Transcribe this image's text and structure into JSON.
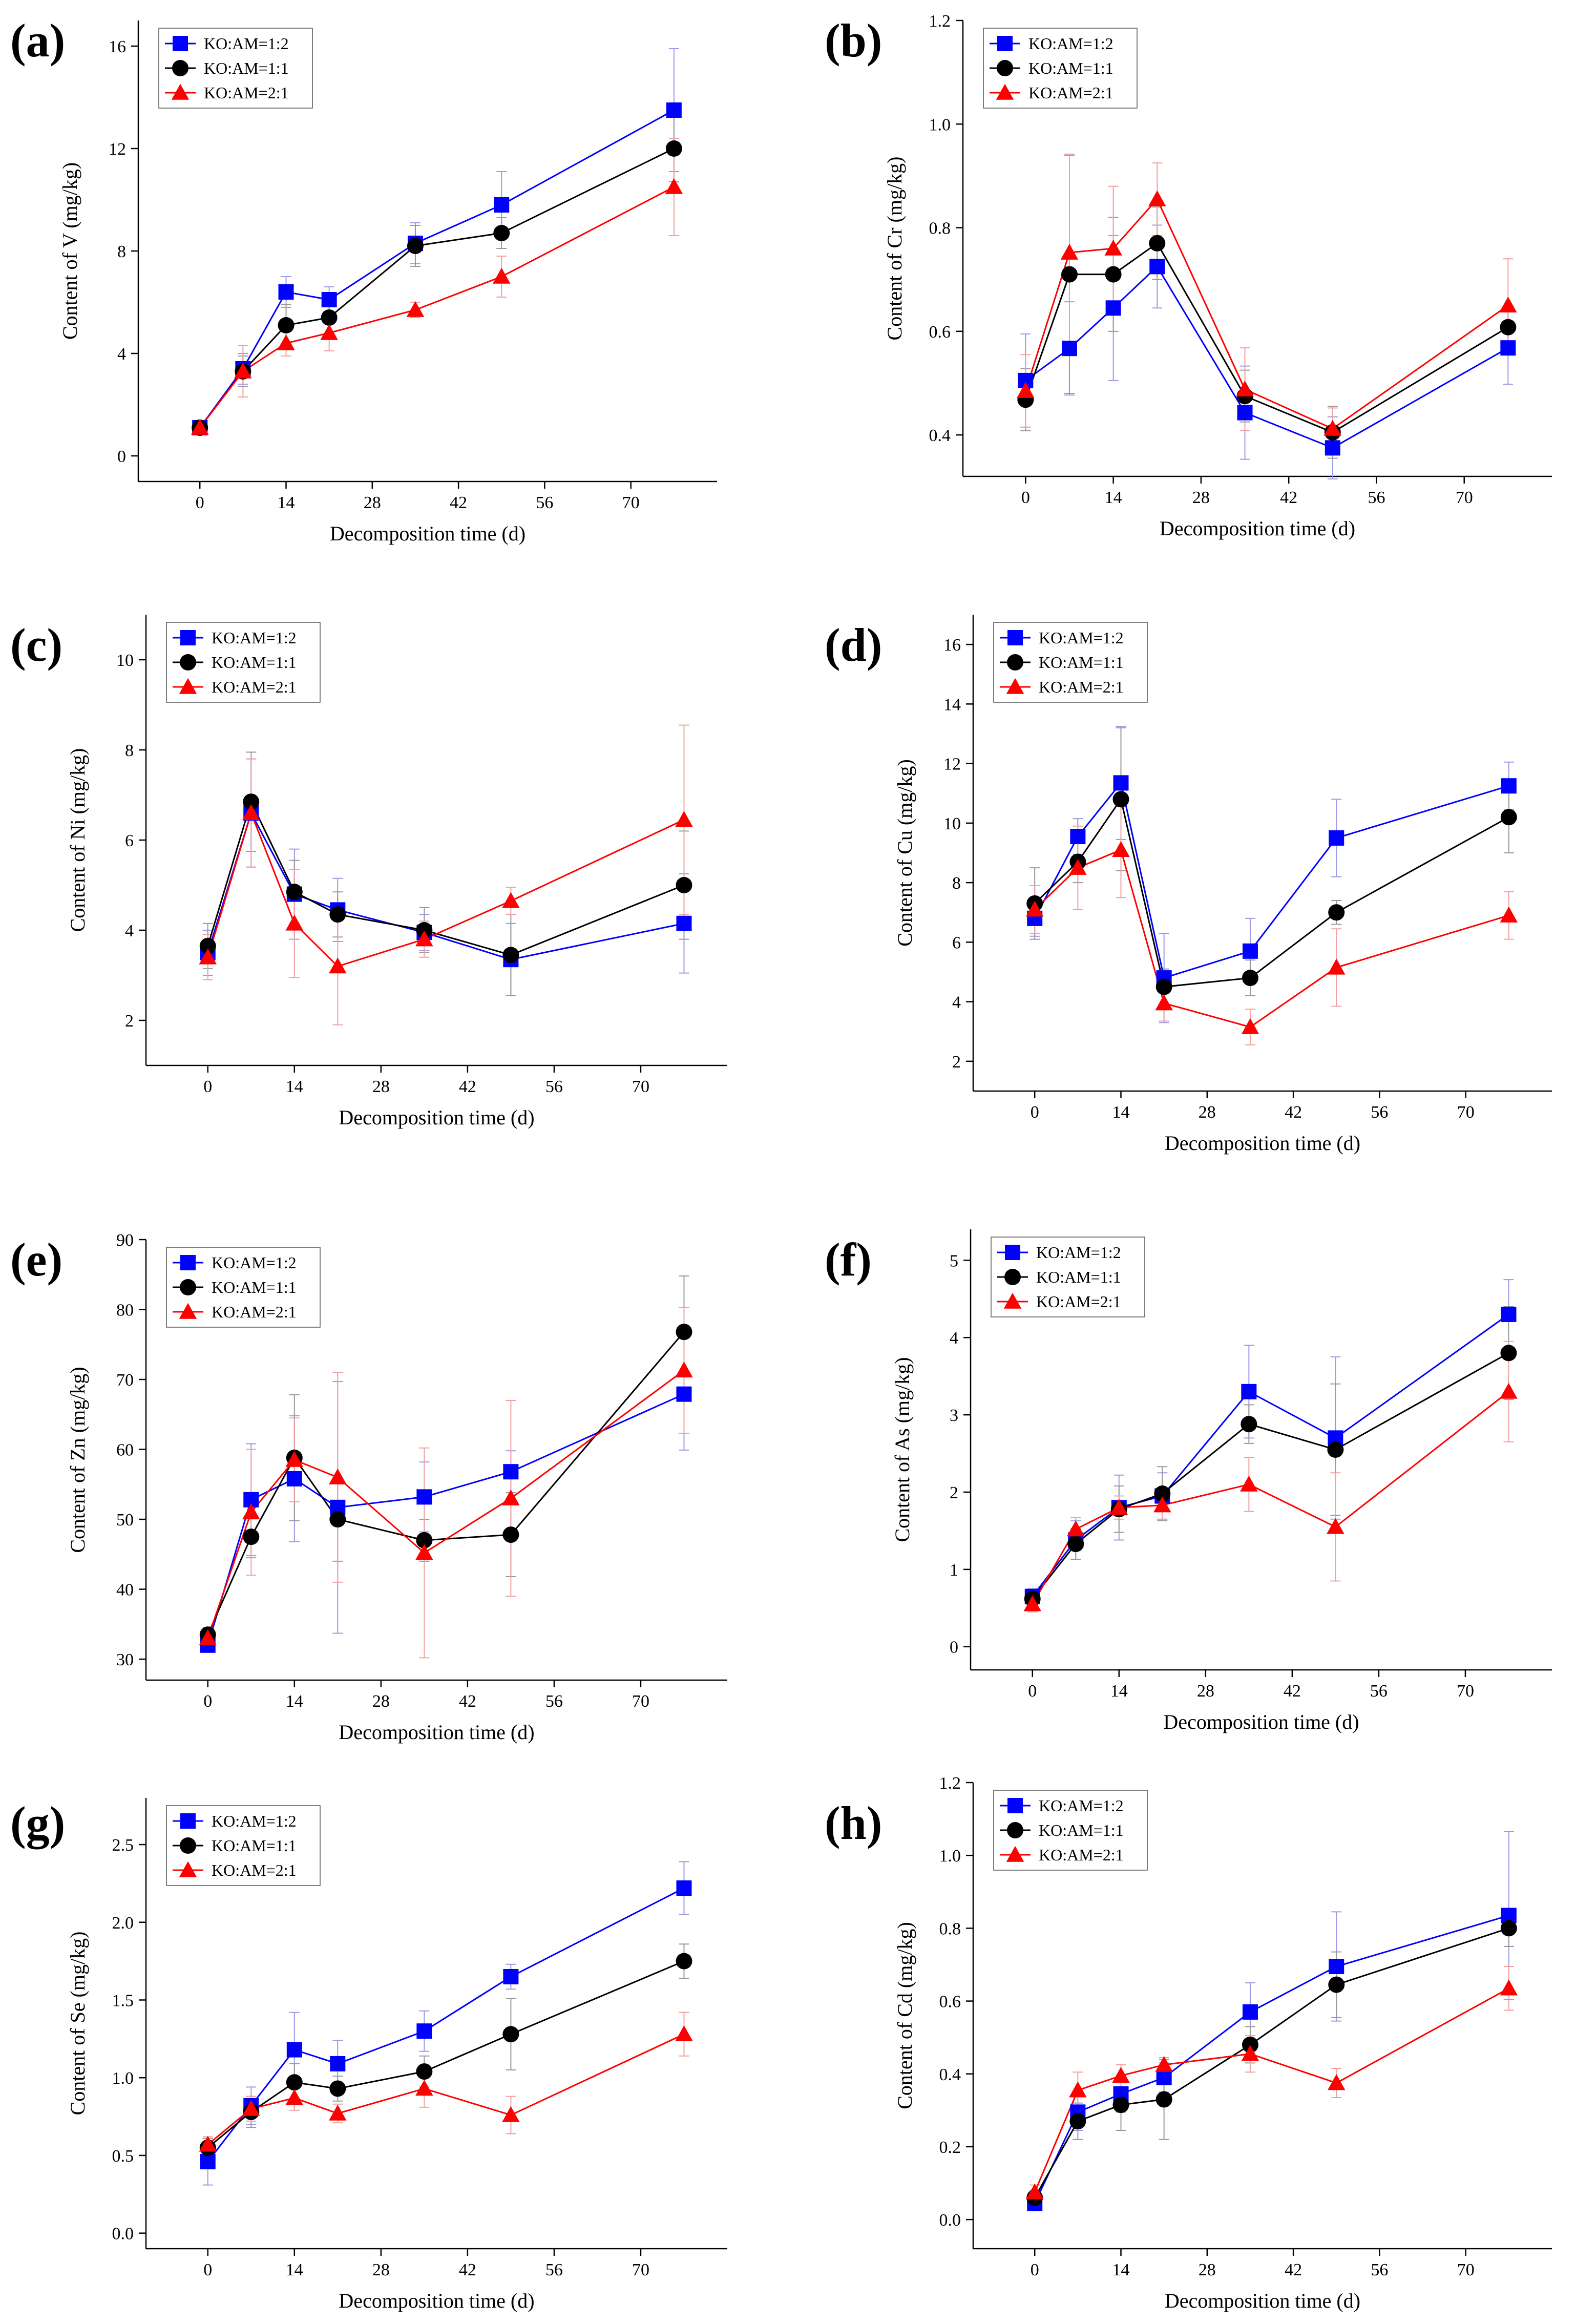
{
  "figure": {
    "panel_labels": [
      "(a)",
      "(b)",
      "(c)",
      "(d)",
      "(e)",
      "(f)",
      "(g)",
      "(h)"
    ]
  },
  "colors": {
    "series_1": "#0000ff",
    "series_2": "#000000",
    "series_3": "#ff0000",
    "series_1_error": "#9a9ae6",
    "series_2_error": "#999999",
    "series_3_error": "#f0a0a0"
  },
  "chart_data": [
    {
      "type": "line",
      "panel": "(a)",
      "title": "",
      "xlabel": "Decomposition time (d)",
      "ylabel": "Content of V (mg/kg)",
      "x": [
        0,
        7,
        14,
        21,
        35,
        49,
        77
      ],
      "xticks": [
        0,
        14,
        28,
        42,
        56,
        70
      ],
      "xlim": [
        -10,
        84
      ],
      "yticks": [
        0,
        4,
        8,
        12,
        16
      ],
      "ylim": [
        -1,
        17
      ],
      "legend_position": "top-left",
      "series": [
        {
          "name": "KO:AM=1:2",
          "marker": "square",
          "values": [
            1.1,
            3.4,
            6.4,
            6.1,
            8.3,
            9.8,
            13.5
          ],
          "errors": [
            0.2,
            0.6,
            0.6,
            0.5,
            0.8,
            1.3,
            2.4
          ]
        },
        {
          "name": "KO:AM=1:1",
          "marker": "circle",
          "values": [
            1.1,
            3.3,
            5.1,
            5.4,
            8.2,
            8.7,
            12.0
          ],
          "errors": [
            0.2,
            0.6,
            0.8,
            0.7,
            0.8,
            0.6,
            1.3
          ]
        },
        {
          "name": "KO:AM=2:1",
          "marker": "triangle",
          "values": [
            1.1,
            3.3,
            4.4,
            4.8,
            5.7,
            7.0,
            10.5
          ],
          "errors": [
            0.2,
            1.0,
            0.5,
            0.7,
            0.3,
            0.8,
            1.9
          ]
        }
      ]
    },
    {
      "type": "line",
      "panel": "(b)",
      "title": "",
      "xlabel": "Decomposition time (d)",
      "ylabel": "Content of Cr (mg/kg)",
      "x": [
        0,
        7,
        14,
        21,
        35,
        49,
        77
      ],
      "xticks": [
        0,
        14,
        28,
        42,
        56,
        70
      ],
      "xlim": [
        -10,
        84
      ],
      "yticks": [
        0.4,
        0.6,
        0.8,
        1.0,
        1.2
      ],
      "ylim": [
        0.32,
        1.2
      ],
      "legend_position": "top-left",
      "series": [
        {
          "name": "KO:AM=1:2",
          "marker": "square",
          "values": [
            0.505,
            0.567,
            0.645,
            0.725,
            0.443,
            0.375,
            0.568
          ],
          "errors": [
            0.09,
            0.09,
            0.14,
            0.08,
            0.09,
            0.06,
            0.07
          ]
        },
        {
          "name": "KO:AM=1:1",
          "marker": "circle",
          "values": [
            0.468,
            0.71,
            0.71,
            0.77,
            0.475,
            0.405,
            0.608
          ],
          "errors": [
            0.06,
            0.23,
            0.11,
            0.07,
            0.05,
            0.05,
            0.04
          ]
        },
        {
          "name": "KO:AM=2:1",
          "marker": "triangle",
          "values": [
            0.485,
            0.752,
            0.76,
            0.855,
            0.488,
            0.412,
            0.65
          ],
          "errors": [
            0.07,
            0.19,
            0.12,
            0.07,
            0.08,
            0.04,
            0.09
          ]
        }
      ]
    },
    {
      "type": "line",
      "panel": "(c)",
      "title": "",
      "xlabel": "Decomposition time (d)",
      "ylabel": "Content of Ni (mg/kg)",
      "x": [
        0,
        7,
        14,
        21,
        35,
        49,
        77
      ],
      "xticks": [
        0,
        14,
        28,
        42,
        56,
        70
      ],
      "xlim": [
        -10,
        84
      ],
      "yticks": [
        2,
        4,
        6,
        8,
        10
      ],
      "ylim": [
        1,
        11
      ],
      "legend_position": "top-left",
      "series": [
        {
          "name": "KO:AM=1:2",
          "marker": "square",
          "values": [
            3.5,
            6.6,
            4.8,
            4.45,
            3.95,
            3.35,
            4.15
          ],
          "errors": [
            0.5,
            1.2,
            1.0,
            0.7,
            0.4,
            0.8,
            1.1
          ]
        },
        {
          "name": "KO:AM=1:1",
          "marker": "circle",
          "values": [
            3.65,
            6.85,
            4.85,
            4.35,
            4.0,
            3.45,
            5.0
          ],
          "errors": [
            0.5,
            1.1,
            0.7,
            0.5,
            0.5,
            0.9,
            1.2
          ]
        },
        {
          "name": "KO:AM=2:1",
          "marker": "triangle",
          "values": [
            3.4,
            6.6,
            4.15,
            3.2,
            3.8,
            4.65,
            6.45
          ],
          "errors": [
            0.5,
            1.2,
            1.2,
            1.3,
            0.4,
            0.3,
            2.1
          ]
        }
      ]
    },
    {
      "type": "line",
      "panel": "(d)",
      "title": "",
      "xlabel": "Decomposition time (d)",
      "ylabel": "Content of Cu (mg/kg)",
      "x": [
        0,
        7,
        14,
        21,
        35,
        49,
        77
      ],
      "xticks": [
        0,
        14,
        28,
        42,
        56,
        70
      ],
      "xlim": [
        -10,
        84
      ],
      "yticks": [
        2,
        4,
        6,
        8,
        10,
        12,
        14,
        16
      ],
      "ylim": [
        1,
        17
      ],
      "legend_position": "top-left",
      "series": [
        {
          "name": "KO:AM=1:2",
          "marker": "square",
          "values": [
            6.8,
            9.55,
            11.35,
            4.8,
            5.7,
            9.5,
            11.25
          ],
          "errors": [
            0.6,
            0.6,
            1.9,
            1.5,
            1.1,
            1.3,
            0.8
          ]
        },
        {
          "name": "KO:AM=1:1",
          "marker": "circle",
          "values": [
            7.3,
            8.7,
            10.8,
            4.5,
            4.8,
            7.0,
            10.2
          ],
          "errors": [
            1.2,
            0.7,
            2.4,
            0.6,
            0.6,
            0.4,
            1.2
          ]
        },
        {
          "name": "KO:AM=2:1",
          "marker": "triangle",
          "values": [
            7.1,
            8.5,
            9.1,
            3.95,
            3.15,
            5.15,
            6.9
          ],
          "errors": [
            0.8,
            1.4,
            1.6,
            0.6,
            0.6,
            1.3,
            0.8
          ]
        }
      ]
    },
    {
      "type": "line",
      "panel": "(e)",
      "title": "",
      "xlabel": "Decomposition time (d)",
      "ylabel": "Content of Zn (mg/kg)",
      "x": [
        0,
        7,
        14,
        21,
        35,
        49,
        77
      ],
      "xticks": [
        0,
        14,
        28,
        42,
        56,
        70
      ],
      "xlim": [
        -10,
        84
      ],
      "yticks": [
        30,
        40,
        50,
        60,
        70,
        80,
        90
      ],
      "ylim": [
        27,
        90
      ],
      "legend_position": "top-left",
      "series": [
        {
          "name": "KO:AM=1:2",
          "marker": "square",
          "values": [
            32.0,
            52.8,
            55.8,
            51.7,
            53.2,
            56.8,
            67.9
          ],
          "errors": [
            1.0,
            8.0,
            9.0,
            18.0,
            5.0,
            3.0,
            8.0
          ]
        },
        {
          "name": "KO:AM=1:1",
          "marker": "circle",
          "values": [
            33.5,
            47.5,
            58.8,
            50.0,
            47.0,
            47.8,
            76.8
          ],
          "errors": [
            1.0,
            3.0,
            9.0,
            6.0,
            3.0,
            6.0,
            8.0
          ]
        },
        {
          "name": "KO:AM=2:1",
          "marker": "triangle",
          "values": [
            33.0,
            51.0,
            58.5,
            56.0,
            45.2,
            53.0,
            71.3
          ],
          "errors": [
            1.0,
            9.0,
            6.0,
            15.0,
            15.0,
            14.0,
            9.0
          ]
        }
      ]
    },
    {
      "type": "line",
      "panel": "(f)",
      "title": "",
      "xlabel": "Decomposition time (d)",
      "ylabel": "Content of As (mg/kg)",
      "x": [
        0,
        7,
        14,
        21,
        35,
        49,
        77
      ],
      "xticks": [
        0,
        14,
        28,
        42,
        56,
        70
      ],
      "xlim": [
        -10,
        84
      ],
      "yticks": [
        0,
        1,
        2,
        3,
        4,
        5
      ],
      "ylim": [
        -0.3,
        5.4
      ],
      "legend_position": "top-left",
      "series": [
        {
          "name": "KO:AM=1:2",
          "marker": "square",
          "values": [
            0.65,
            1.38,
            1.8,
            1.95,
            3.3,
            2.7,
            4.3
          ],
          "errors": [
            0.1,
            0.25,
            0.42,
            0.3,
            0.6,
            1.05,
            0.45
          ]
        },
        {
          "name": "KO:AM=1:1",
          "marker": "circle",
          "values": [
            0.62,
            1.33,
            1.78,
            1.98,
            2.88,
            2.55,
            3.8
          ],
          "errors": [
            0.1,
            0.2,
            0.3,
            0.35,
            0.25,
            0.85,
            0.6
          ]
        },
        {
          "name": "KO:AM=2:1",
          "marker": "triangle",
          "values": [
            0.55,
            1.52,
            1.8,
            1.83,
            2.1,
            1.55,
            3.3
          ],
          "errors": [
            0.1,
            0.15,
            0.15,
            0.18,
            0.35,
            0.7,
            0.65
          ]
        }
      ]
    },
    {
      "type": "line",
      "panel": "(g)",
      "title": "",
      "xlabel": "Decomposition time (d)",
      "ylabel": "Content of Se (mg/kg)",
      "x": [
        0,
        7,
        14,
        21,
        35,
        49,
        77
      ],
      "xticks": [
        0,
        14,
        28,
        42,
        56,
        70
      ],
      "xlim": [
        -10,
        84
      ],
      "yticks": [
        0.0,
        0.5,
        1.0,
        1.5,
        2.0,
        2.5
      ],
      "ylim": [
        -0.1,
        2.8
      ],
      "legend_position": "top-left",
      "series": [
        {
          "name": "KO:AM=1:2",
          "marker": "square",
          "values": [
            0.46,
            0.82,
            1.18,
            1.09,
            1.3,
            1.65,
            2.22
          ],
          "errors": [
            0.15,
            0.12,
            0.24,
            0.15,
            0.13,
            0.08,
            0.17
          ]
        },
        {
          "name": "KO:AM=1:1",
          "marker": "circle",
          "values": [
            0.55,
            0.78,
            0.97,
            0.93,
            1.04,
            1.28,
            1.75
          ],
          "errors": [
            0.06,
            0.1,
            0.12,
            0.08,
            0.1,
            0.23,
            0.11
          ]
        },
        {
          "name": "KO:AM=2:1",
          "marker": "triangle",
          "values": [
            0.57,
            0.8,
            0.87,
            0.77,
            0.93,
            0.76,
            1.28
          ],
          "errors": [
            0.05,
            0.08,
            0.08,
            0.06,
            0.12,
            0.12,
            0.14
          ]
        }
      ]
    },
    {
      "type": "line",
      "panel": "(h)",
      "title": "",
      "xlabel": "Decomposition time (d)",
      "ylabel": "Content of Cd (mg/kg)",
      "x": [
        0,
        7,
        14,
        21,
        35,
        49,
        77
      ],
      "xticks": [
        0,
        14,
        28,
        42,
        56,
        70
      ],
      "xlim": [
        -10,
        84
      ],
      "yticks": [
        0.0,
        0.2,
        0.4,
        0.6,
        0.8,
        1.0,
        1.2
      ],
      "ylim": [
        -0.08,
        1.2
      ],
      "legend_position": "top-left",
      "series": [
        {
          "name": "KO:AM=1:2",
          "marker": "square",
          "values": [
            0.045,
            0.295,
            0.345,
            0.39,
            0.57,
            0.695,
            0.835
          ],
          "errors": [
            0.02,
            0.05,
            0.05,
            0.04,
            0.08,
            0.15,
            0.23
          ]
        },
        {
          "name": "KO:AM=1:1",
          "marker": "circle",
          "values": [
            0.06,
            0.27,
            0.315,
            0.33,
            0.48,
            0.645,
            0.8
          ],
          "errors": [
            0.02,
            0.05,
            0.07,
            0.11,
            0.05,
            0.09,
            0.05
          ]
        },
        {
          "name": "KO:AM=2:1",
          "marker": "triangle",
          "values": [
            0.075,
            0.355,
            0.395,
            0.425,
            0.455,
            0.375,
            0.635
          ],
          "errors": [
            0.02,
            0.05,
            0.03,
            0.02,
            0.05,
            0.04,
            0.06
          ]
        }
      ]
    }
  ]
}
